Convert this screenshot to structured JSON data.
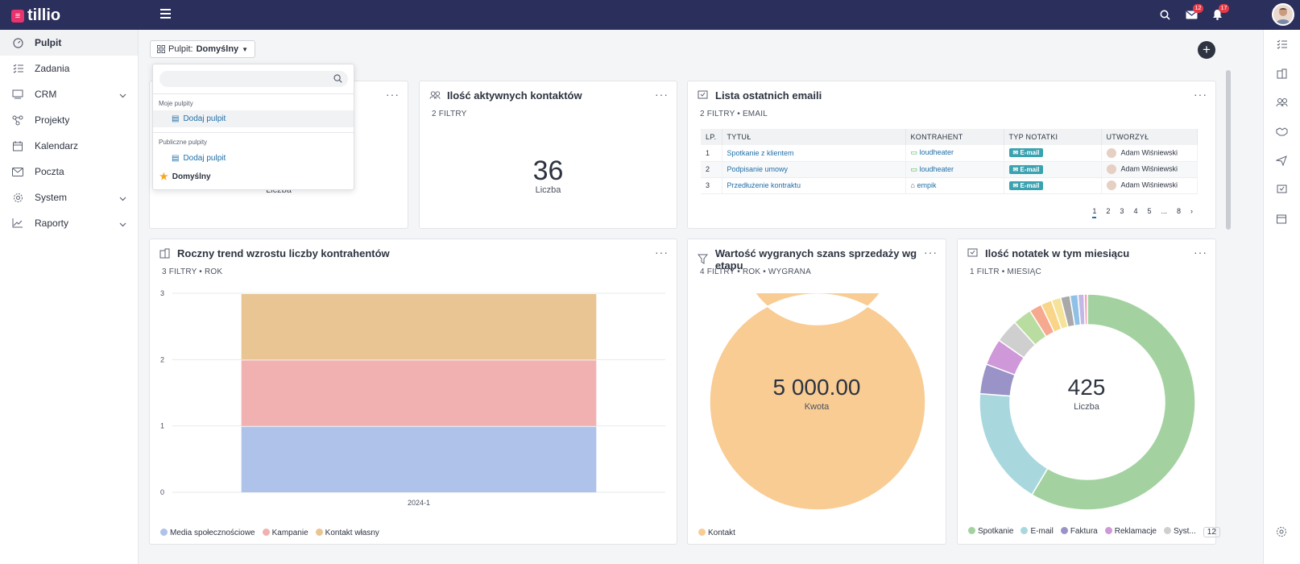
{
  "app": {
    "name": "tillio"
  },
  "header": {
    "mail_badge": "12",
    "bell_badge": "17"
  },
  "sidebar": {
    "items": [
      {
        "label": "Pulpit",
        "icon": "dashboard-icon",
        "active": true
      },
      {
        "label": "Zadania",
        "icon": "tasks-icon"
      },
      {
        "label": "CRM",
        "icon": "crm-icon",
        "expandable": true
      },
      {
        "label": "Projekty",
        "icon": "projects-icon"
      },
      {
        "label": "Kalendarz",
        "icon": "calendar-icon"
      },
      {
        "label": "Poczta",
        "icon": "mail-icon"
      },
      {
        "label": "System",
        "icon": "gear-icon",
        "expandable": true
      },
      {
        "label": "Raporty",
        "icon": "chart-icon",
        "expandable": true
      }
    ]
  },
  "toolbar": {
    "dash_prefix": "Pulpit:",
    "dash_value": "Domyślny"
  },
  "dropdown": {
    "search_placeholder": "",
    "my_group": "Moje pulpity",
    "my_add": "Dodaj pulpit",
    "public_group": "Publiczne pulpity",
    "public_add": "Dodaj pulpit",
    "default_label": "Domyślny"
  },
  "card_hidden": {
    "label": "Liczba"
  },
  "card_contacts": {
    "title": "Ilość aktywnych kontaktów",
    "sub": "2 FILTRY",
    "value": "36",
    "label": "Liczba"
  },
  "card_emails": {
    "title": "Lista ostatnich emaili",
    "sub": "2 FILTRY • EMAIL",
    "columns": [
      "LP.",
      "TYTUŁ",
      "KONTRAHENT",
      "TYP NOTATKI",
      "UTWORZYŁ"
    ],
    "rows": [
      {
        "lp": "1",
        "title": "Spotkanie z klientem",
        "contractor": "loudheater",
        "type": "E-mail",
        "author": "Adam Wiśniewski"
      },
      {
        "lp": "2",
        "title": "Podpisanie umowy",
        "contractor": "loudheater",
        "type": "E-mail",
        "author": "Adam Wiśniewski"
      },
      {
        "lp": "3",
        "title": "Przedłużenie kontraktu",
        "contractor": "empik",
        "type": "E-mail",
        "author": "Adam Wiśniewski"
      }
    ],
    "pages": [
      "1",
      "2",
      "3",
      "4",
      "5",
      "...",
      "8"
    ]
  },
  "card_trend": {
    "title": "Roczny trend wzrostu liczby kontrahentów",
    "sub": "3 FILTRY • ROK"
  },
  "card_won": {
    "title": "Wartość wygranych szans sprzedaży wg etapu",
    "sub": "4 FILTRY • ROK • WYGRANA",
    "value": "5 000.00",
    "label": "Kwota"
  },
  "card_notes": {
    "title": "Ilość notatek w tym miesiącu",
    "sub": "1 FILTR • MIESIĄC",
    "value": "425",
    "label": "Liczba",
    "legend_more": "12"
  },
  "chart_data": [
    {
      "type": "bar",
      "stacked": true,
      "title": "Roczny trend wzrostu liczby kontrahentów",
      "categories": [
        "2024-1"
      ],
      "series": [
        {
          "name": "Media społecznościowe",
          "values": [
            1
          ],
          "color": "#aec2ea"
        },
        {
          "name": "Kampanie",
          "values": [
            1
          ],
          "color": "#f2b1b1"
        },
        {
          "name": "Kontakt własny",
          "values": [
            1
          ],
          "color": "#e9c593"
        }
      ],
      "ylim": [
        0,
        3
      ],
      "yticks": [
        "0",
        "1",
        "2",
        "3"
      ]
    },
    {
      "type": "pie",
      "donut": true,
      "title": "Wartość wygranych szans sprzedaży wg etapu",
      "labels": [
        "Kontakt"
      ],
      "values": [
        5000
      ],
      "colors": [
        "#f8cc93"
      ]
    },
    {
      "type": "pie",
      "donut": true,
      "title": "Ilość notatek w tym miesiącu",
      "total": 425,
      "legend": [
        "Spotkanie",
        "E-mail",
        "Faktura",
        "Reklamacje",
        "Syst..."
      ],
      "values": [
        249,
        75,
        19,
        17,
        15,
        12,
        8,
        7,
        6,
        6,
        5,
        4,
        2
      ],
      "colors": [
        "#a3d2a0",
        "#a8d8de",
        "#9a93c8",
        "#cf98d8",
        "#cfcfcf",
        "#b9dca0",
        "#f6a98f",
        "#f9d58a",
        "#f5e39a",
        "#a9a9a9",
        "#8fc1e6",
        "#c3b7e6",
        "#f3a3b5"
      ]
    }
  ]
}
